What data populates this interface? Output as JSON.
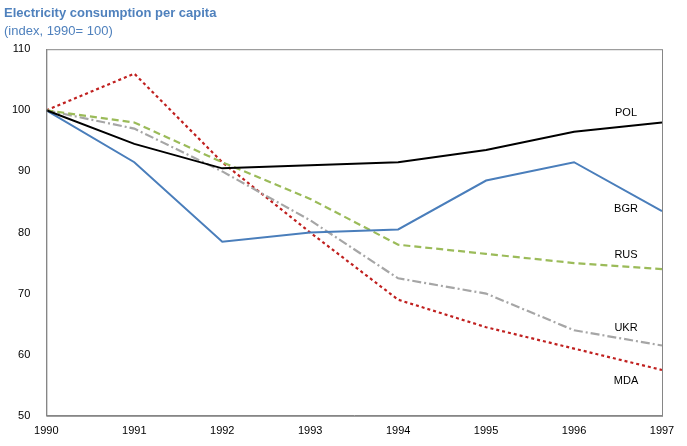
{
  "chart_data": {
    "type": "line",
    "title": "Electricity consumption per capita",
    "subtitle": "(index, 1990= 100)",
    "categories": [
      "1990",
      "1991",
      "1992",
      "1993",
      "1994",
      "1995",
      "1996",
      "1997"
    ],
    "series": [
      {
        "name": "POL",
        "color": "#000000",
        "line_style": "solid",
        "values": [
          100,
          94.5,
          90.5,
          91,
          91.5,
          93.5,
          96.5,
          98
        ]
      },
      {
        "name": "BGR",
        "color": "#4a7ebb",
        "line_style": "solid",
        "values": [
          100,
          91.5,
          78.5,
          80,
          80.5,
          88.5,
          91.5,
          83.5
        ]
      },
      {
        "name": "RUS",
        "color": "#9bbb59",
        "line_style": "dashed",
        "values": [
          100,
          98,
          91.5,
          85.5,
          78,
          76.5,
          75,
          74
        ]
      },
      {
        "name": "UKR",
        "color": "#a6a6a6",
        "line_style": "dashdot",
        "values": [
          100,
          97,
          90,
          82,
          72.5,
          70,
          64,
          61.5
        ]
      },
      {
        "name": "MDA",
        "color": "#c0201f",
        "line_style": "dotted",
        "values": [
          100,
          106,
          91.5,
          80,
          69,
          64.5,
          61,
          57.5
        ]
      }
    ],
    "ylim": [
      50,
      110
    ],
    "yticks": [
      50,
      60,
      70,
      80,
      90,
      100,
      110
    ],
    "grid": false,
    "legend": "none"
  }
}
